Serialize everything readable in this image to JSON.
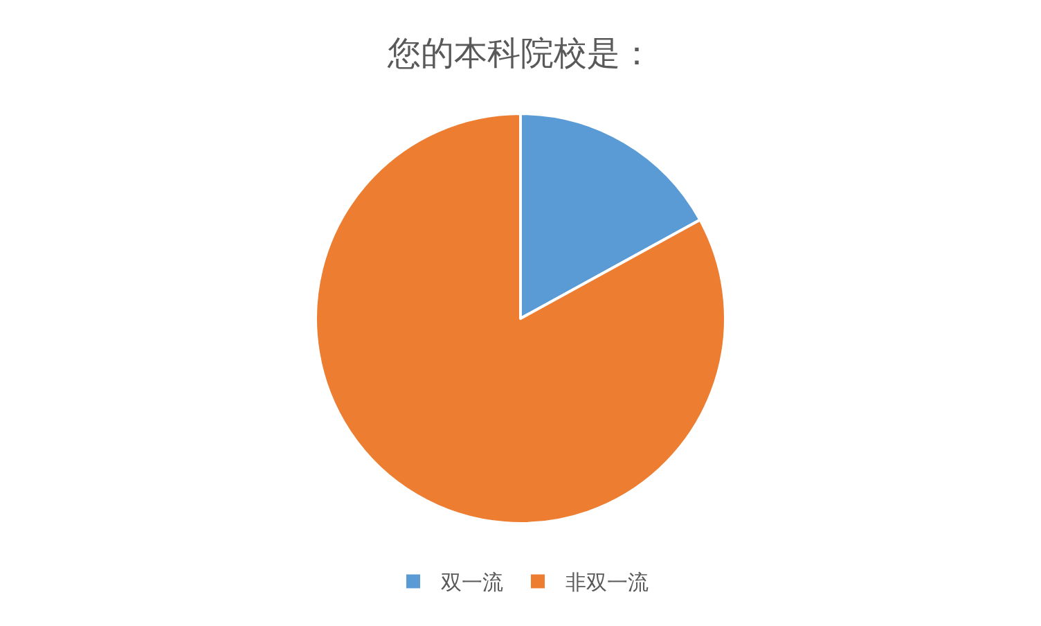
{
  "chart_data": {
    "type": "pie",
    "title": "您的本科院校是：",
    "categories": [
      "双一流",
      "非双一流"
    ],
    "values": [
      17,
      83
    ],
    "colors": [
      "#5b9bd5",
      "#ed7d31"
    ],
    "legend": "bottom"
  }
}
